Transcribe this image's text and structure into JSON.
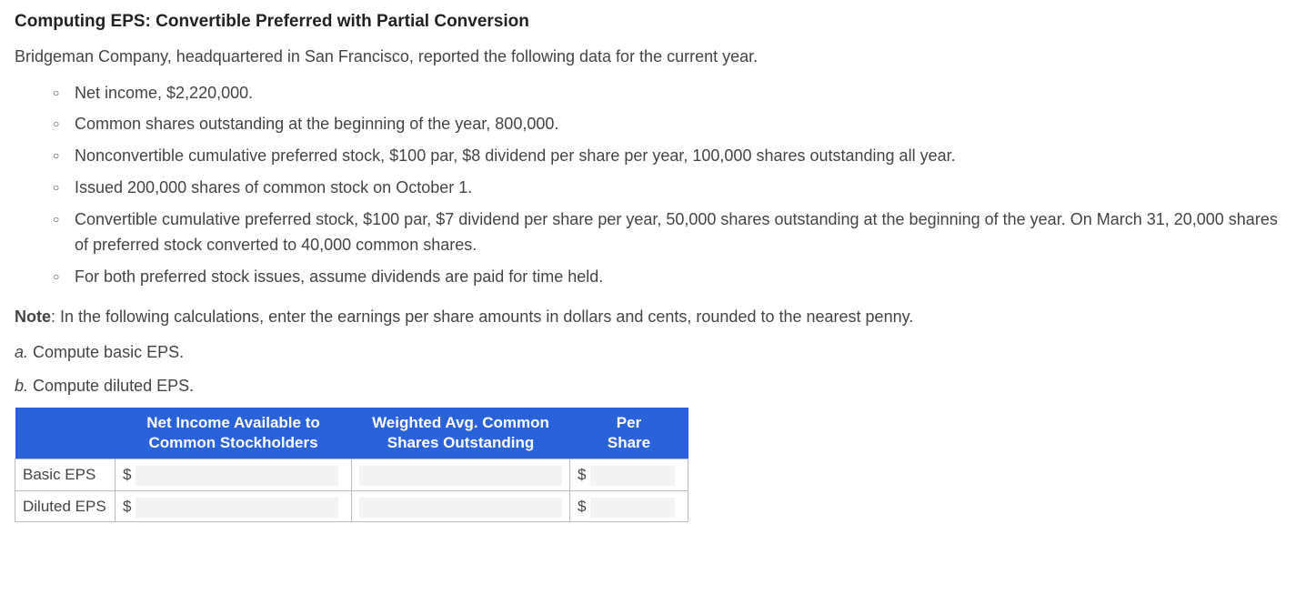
{
  "title": "Computing EPS: Convertible Preferred with Partial Conversion",
  "intro": "Bridgeman Company, headquartered in San Francisco, reported the following data for the current year.",
  "bullets": [
    "Net income, $2,220,000.",
    "Common shares outstanding at the beginning of the year, 800,000.",
    "Nonconvertible cumulative preferred stock, $100 par, $8 dividend per share per year, 100,000 shares outstanding all year.",
    "Issued 200,000 shares of common stock on October 1.",
    "Convertible cumulative preferred stock, $100 par, $7 dividend per share per year, 50,000 shares outstanding at the beginning of the year. On March 31, 20,000 shares of preferred stock converted to 40,000 common shares.",
    "For both preferred stock issues, assume dividends are paid for time held."
  ],
  "note_label": "Note",
  "note_text": ": In the following calculations, enter the earnings per share amounts in dollars and cents, rounded to the nearest penny.",
  "questions": {
    "a_label": "a.",
    "a_text": " Compute basic EPS.",
    "b_label": "b.",
    "b_text": " Compute diluted EPS."
  },
  "table": {
    "headers": {
      "col1": "",
      "col2_line1": "Net Income Available to",
      "col2_line2": "Common Stockholders",
      "col3_line1": "Weighted Avg. Common",
      "col3_line2": "Shares Outstanding",
      "col4_line1": "Per",
      "col4_line2": "Share"
    },
    "rows": [
      {
        "label": "Basic EPS",
        "income_prefix": "$",
        "income": "",
        "shares": "",
        "pershare_prefix": "$",
        "pershare": ""
      },
      {
        "label": "Diluted EPS",
        "income_prefix": "$",
        "income": "",
        "shares": "",
        "pershare_prefix": "$",
        "pershare": ""
      }
    ]
  },
  "colors": {
    "header_bg": "#2962d9",
    "header_text": "#ffffff",
    "border": "#bbbbbb",
    "text": "#444444",
    "input_bg": "#f3f3f3"
  }
}
